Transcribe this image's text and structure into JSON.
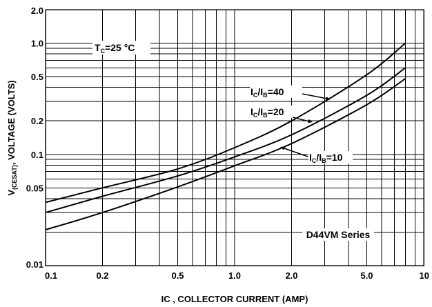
{
  "chart_data": {
    "type": "line",
    "title": "",
    "xlabel": "IC , COLLECTOR CURRENT (AMP)",
    "ylabel_main": "V",
    "ylabel_sub": "(CESAT)",
    "ylabel_rest": ", VOLTAGE (VOLTS)",
    "x_scale": "log",
    "y_scale": "log",
    "xlim": [
      0.1,
      10
    ],
    "ylim": [
      0.01,
      2.0
    ],
    "x_ticks": [
      {
        "value": 0.1,
        "label": "0.1"
      },
      {
        "value": 0.2,
        "label": "0.2"
      },
      {
        "value": 0.5,
        "label": "0.5"
      },
      {
        "value": 1.0,
        "label": "1.0"
      },
      {
        "value": 2.0,
        "label": "2.0"
      },
      {
        "value": 5.0,
        "label": "5.0"
      },
      {
        "value": 10,
        "label": "10"
      }
    ],
    "y_ticks": [
      {
        "value": 0.01,
        "label": "0.01"
      },
      {
        "value": 0.05,
        "label": "0.05"
      },
      {
        "value": 0.1,
        "label": "0.1"
      },
      {
        "value": 0.2,
        "label": "0.2"
      },
      {
        "value": 0.5,
        "label": "0.5"
      },
      {
        "value": 1.0,
        "label": "1.0"
      },
      {
        "value": 2.0,
        "label": "2.0"
      }
    ],
    "grid": true,
    "series": [
      {
        "label_main": "I",
        "label_sub1": "C",
        "label_mid": "/I",
        "label_sub2": "B",
        "label_rest": "=40",
        "x": [
          0.1,
          0.2,
          0.5,
          1.0,
          2.0,
          5.0,
          8.0
        ],
        "y": [
          0.037,
          0.05,
          0.074,
          0.115,
          0.2,
          0.52,
          1.0
        ]
      },
      {
        "label_main": "I",
        "label_sub1": "C",
        "label_mid": "/I",
        "label_sub2": "B",
        "label_rest": "=20",
        "x": [
          0.1,
          0.2,
          0.5,
          1.0,
          2.0,
          5.0,
          8.0
        ],
        "y": [
          0.03,
          0.042,
          0.064,
          0.095,
          0.15,
          0.34,
          0.6
        ]
      },
      {
        "label_main": "I",
        "label_sub1": "C",
        "label_mid": "/I",
        "label_sub2": "B",
        "label_rest": "=10",
        "x": [
          0.1,
          0.2,
          0.5,
          1.0,
          2.0,
          5.0,
          8.0
        ],
        "y": [
          0.021,
          0.03,
          0.051,
          0.079,
          0.125,
          0.28,
          0.48
        ]
      }
    ],
    "annotations": {
      "temperature": {
        "main": "T",
        "sub": "C",
        "rest": "=25 °C"
      },
      "series_name": "D44VM Series"
    }
  }
}
